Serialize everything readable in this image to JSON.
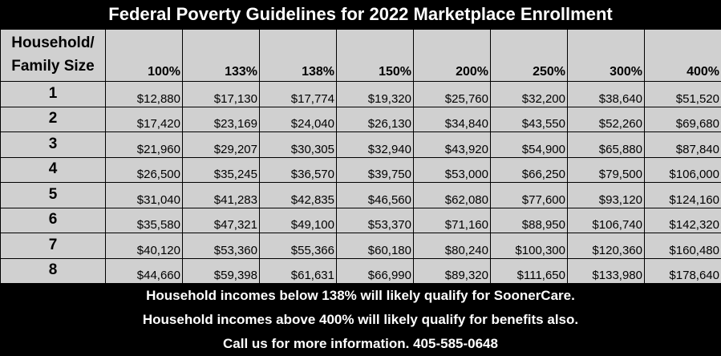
{
  "title": "Federal Poverty Guidelines for 2022 Marketplace Enrollment",
  "header": {
    "first": [
      "Household/",
      "Family Size"
    ],
    "columns": [
      "100%",
      "133%",
      "138%",
      "150%",
      "200%",
      "250%",
      "300%",
      "400%"
    ]
  },
  "rows": [
    {
      "size": "1",
      "values": [
        "$12,880",
        "$17,130",
        "$17,774",
        "$19,320",
        "$25,760",
        "$32,200",
        "$38,640",
        "$51,520"
      ]
    },
    {
      "size": "2",
      "values": [
        "$17,420",
        "$23,169",
        "$24,040",
        "$26,130",
        "$34,840",
        "$43,550",
        "$52,260",
        "$69,680"
      ]
    },
    {
      "size": "3",
      "values": [
        "$21,960",
        "$29,207",
        "$30,305",
        "$32,940",
        "$43,920",
        "$54,900",
        "$65,880",
        "$87,840"
      ]
    },
    {
      "size": "4",
      "values": [
        "$26,500",
        "$35,245",
        "$36,570",
        "$39,750",
        "$53,000",
        "$66,250",
        "$79,500",
        "$106,000"
      ]
    },
    {
      "size": "5",
      "values": [
        "$31,040",
        "$41,283",
        "$42,835",
        "$46,560",
        "$62,080",
        "$77,600",
        "$93,120",
        "$124,160"
      ]
    },
    {
      "size": "6",
      "values": [
        "$35,580",
        "$47,321",
        "$49,100",
        "$53,370",
        "$71,160",
        "$88,950",
        "$106,740",
        "$142,320"
      ]
    },
    {
      "size": "7",
      "values": [
        "$40,120",
        "$53,360",
        "$55,366",
        "$60,180",
        "$80,240",
        "$100,300",
        "$120,360",
        "$160,480"
      ]
    },
    {
      "size": "8",
      "values": [
        "$44,660",
        "$59,398",
        "$61,631",
        "$66,990",
        "$89,320",
        "$111,650",
        "$133,980",
        "$178,640"
      ]
    }
  ],
  "footer": [
    "Household incomes below 138% will likely qualify for SoonerCare.",
    "Household incomes above 400% will likely qualify for benefits also.",
    "Call us for more information.  405-585-0648"
  ]
}
